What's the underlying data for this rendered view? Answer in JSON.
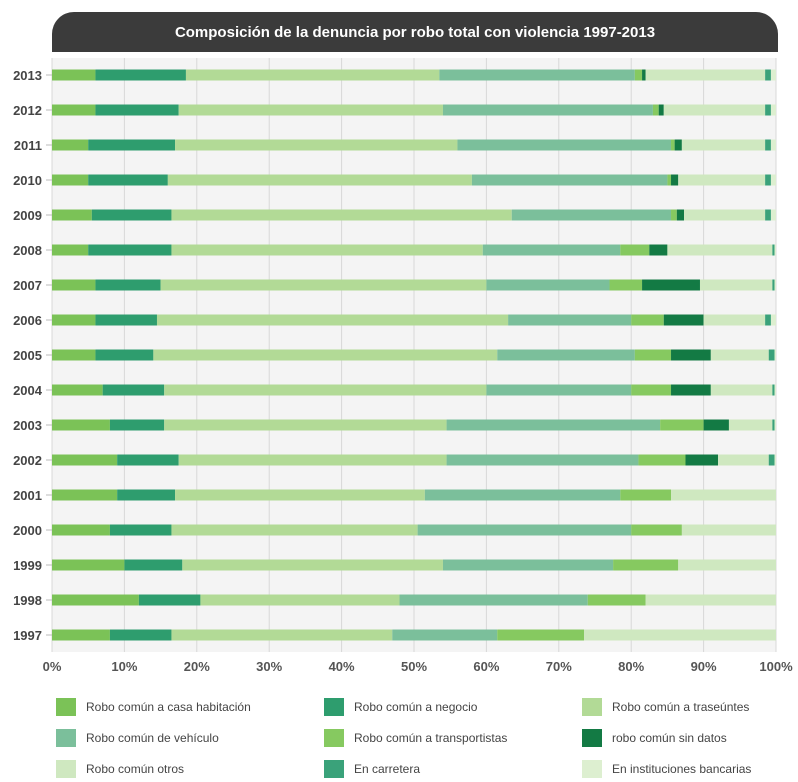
{
  "chart_data": {
    "type": "bar",
    "orientation": "horizontal",
    "stacked": true,
    "title": "Composición de la denuncia por robo total con violencia 1997-2013",
    "xlabel": "",
    "ylabel": "",
    "xlim": [
      0,
      100
    ],
    "x_ticks": [
      "0%",
      "10%",
      "20%",
      "30%",
      "40%",
      "50%",
      "60%",
      "70%",
      "80%",
      "90%",
      "100%"
    ],
    "grid": true,
    "legend_position": "bottom",
    "categories": [
      "2013",
      "2012",
      "2011",
      "2010",
      "2009",
      "2008",
      "2007",
      "2006",
      "2005",
      "2004",
      "2003",
      "2002",
      "2001",
      "2000",
      "1999",
      "1998",
      "1997"
    ],
    "series": [
      {
        "name": "Robo común a casa habitación",
        "color": "#7bc257",
        "values": [
          6,
          6,
          5,
          5,
          5.5,
          5,
          6,
          6,
          6,
          7,
          8,
          9,
          9,
          8,
          10,
          12,
          8
        ]
      },
      {
        "name": "Robo común a negocio",
        "color": "#2e9d6e",
        "values": [
          12.5,
          11.5,
          12,
          11,
          11,
          11.5,
          9,
          8.5,
          8,
          8.5,
          7.5,
          8.5,
          8,
          8.5,
          8,
          8.5,
          8.5
        ]
      },
      {
        "name": "Robo común a traseúntes",
        "color": "#b2da96",
        "values": [
          35,
          36.5,
          39,
          42,
          47,
          43,
          45,
          48.5,
          47.5,
          44.5,
          39,
          37,
          34.5,
          34,
          36,
          27.5,
          30.5
        ]
      },
      {
        "name": "Robo común de vehículo",
        "color": "#7bbf9b",
        "values": [
          27,
          29,
          29.5,
          27,
          22,
          19,
          17,
          17,
          19,
          20,
          29.5,
          26.5,
          27,
          29.5,
          23.5,
          26,
          14.5
        ]
      },
      {
        "name": "Robo común a transportistas",
        "color": "#86c960",
        "values": [
          1,
          0.8,
          0.5,
          0.5,
          0.8,
          4,
          4.5,
          4.5,
          5,
          5.5,
          6,
          6.5,
          7,
          7,
          9,
          8,
          12
        ]
      },
      {
        "name": "robo común sin datos",
        "color": "#137a44",
        "values": [
          0.5,
          0.7,
          1,
          1,
          1,
          2.5,
          8,
          5.5,
          5.5,
          5.5,
          3.5,
          4.5,
          0,
          0,
          0,
          0,
          0
        ]
      },
      {
        "name": "Robo común otros",
        "color": "#cfe8c0",
        "values": [
          16.5,
          14,
          11.5,
          12,
          11.2,
          14.5,
          10,
          8.5,
          8,
          8.5,
          6,
          7,
          14.5,
          13,
          13.5,
          18,
          26.5
        ]
      },
      {
        "name": "En carretera",
        "color": "#3aa27a",
        "values": [
          0.8,
          0.8,
          0.8,
          0.8,
          0.8,
          0.3,
          0.3,
          0.8,
          0.8,
          0.3,
          0.3,
          0.8,
          0,
          0,
          0,
          0,
          0
        ]
      },
      {
        "name": "En instituciones bancarias",
        "color": "#ddefd0",
        "values": [
          0.7,
          0.7,
          0.7,
          0.7,
          0.7,
          0.2,
          0.2,
          0.7,
          0.2,
          0.2,
          0.2,
          0.2,
          0,
          0,
          0,
          0,
          0
        ]
      }
    ]
  }
}
